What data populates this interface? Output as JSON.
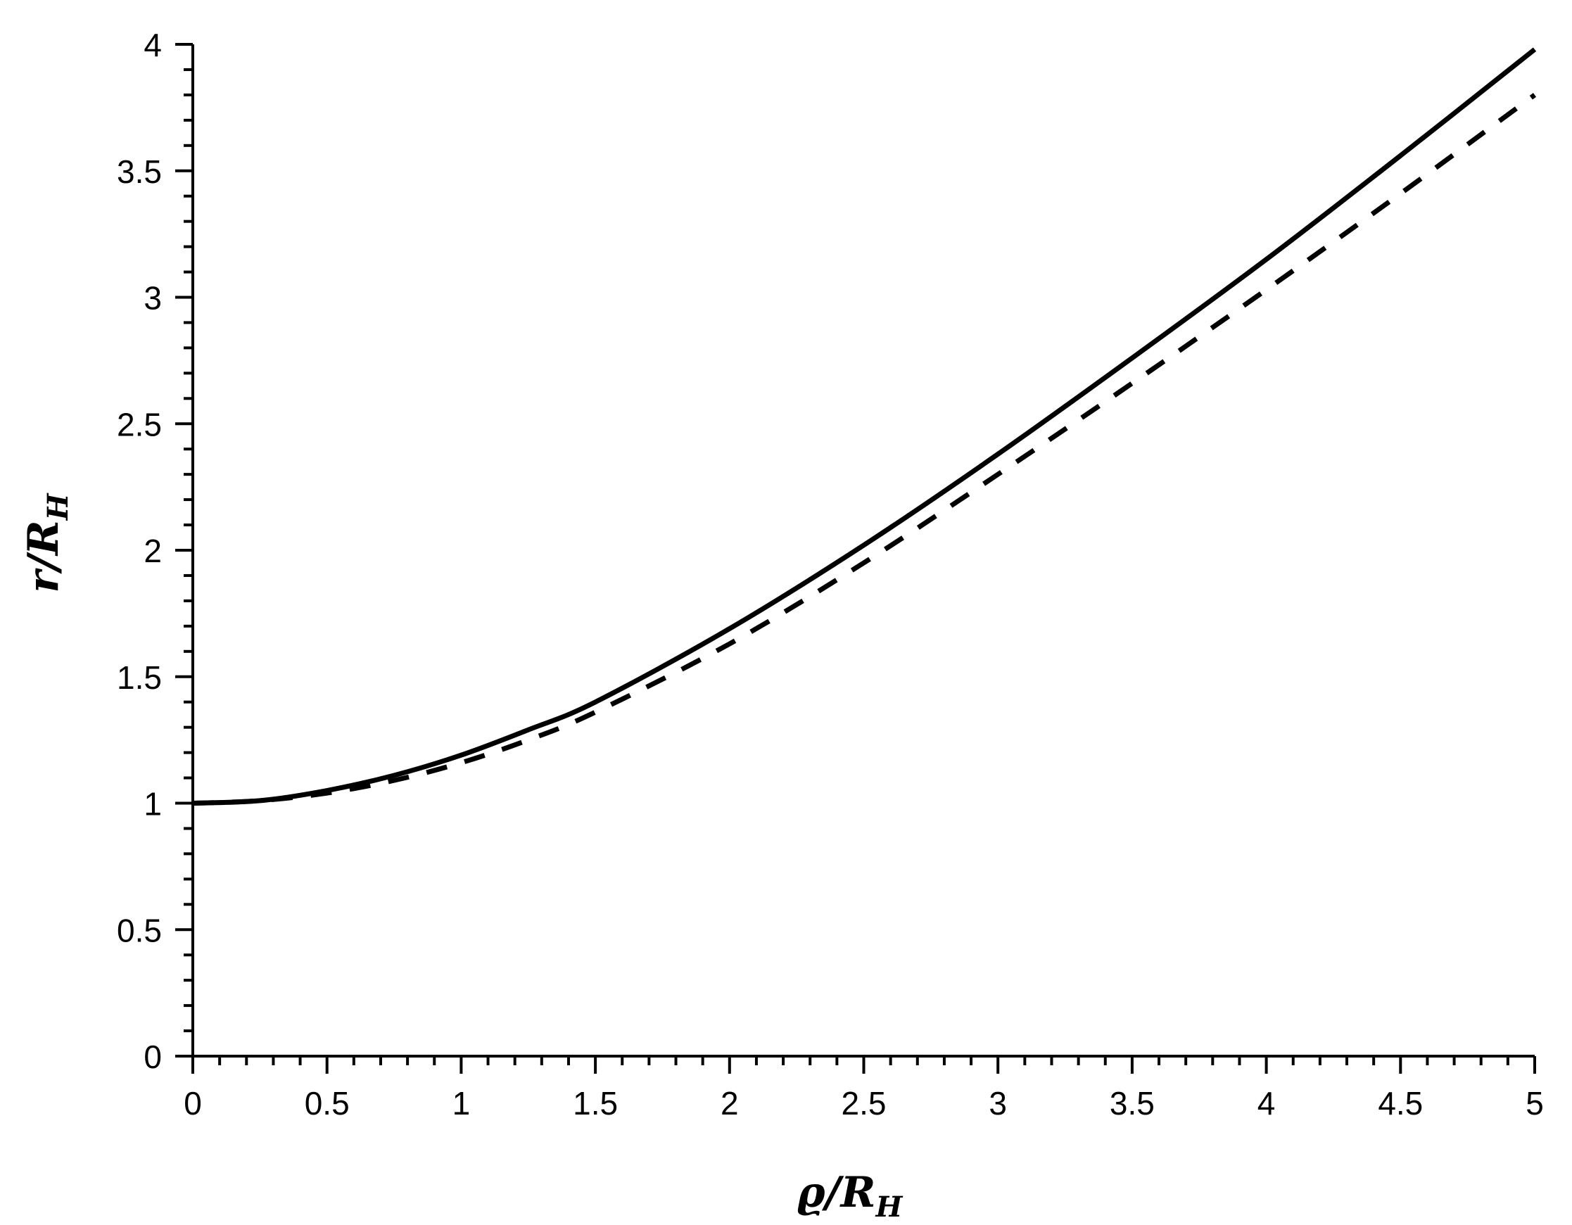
{
  "chart_data": {
    "type": "line",
    "title": "",
    "xlabel": "ϱ/R_H",
    "ylabel": "r/R_H",
    "xlim": [
      0,
      5
    ],
    "ylim": [
      0,
      4
    ],
    "grid": false,
    "legend": null,
    "x_ticks": [
      "0",
      "0.5",
      "1",
      "1.5",
      "2",
      "2.5",
      "3",
      "3.5",
      "4",
      "4.5",
      "5"
    ],
    "y_ticks": [
      "0",
      "0.5",
      "1",
      "1.5",
      "2",
      "2.5",
      "3",
      "3.5",
      "4"
    ],
    "x": [
      0,
      0.25,
      0.5,
      0.75,
      1,
      1.25,
      1.5,
      2,
      2.5,
      3,
      3.5,
      4,
      4.5,
      5
    ],
    "series": [
      {
        "name": "solid",
        "style": "solid",
        "color": "#000000",
        "values": [
          1.0,
          1.01,
          1.05,
          1.11,
          1.19,
          1.29,
          1.4,
          1.69,
          2.02,
          2.38,
          2.76,
          3.15,
          3.56,
          3.98
        ]
      },
      {
        "name": "dashed",
        "style": "dashed",
        "color": "#000000",
        "values": [
          1.0,
          1.01,
          1.04,
          1.09,
          1.16,
          1.25,
          1.36,
          1.63,
          1.95,
          2.3,
          2.66,
          3.03,
          3.41,
          3.8
        ]
      }
    ]
  },
  "labels": {
    "x_main": "ϱ/R",
    "x_sub": "H",
    "y_main": "r/R",
    "y_sub": "H"
  }
}
